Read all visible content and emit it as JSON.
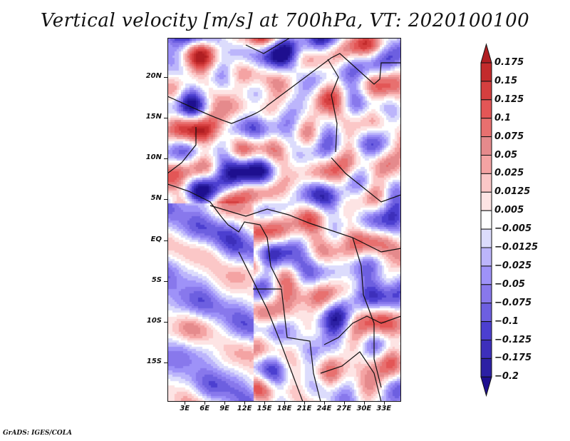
{
  "chart_data": {
    "type": "heatmap",
    "title": "Vertical velocity [m/s] at 700hPa, VT: 2020100100",
    "variable": "Vertical velocity",
    "units": "m/s",
    "level": "700hPa",
    "valid_time": "2020100100",
    "x_axis": {
      "ticks": [
        "3E",
        "6E",
        "9E",
        "12E",
        "15E",
        "18E",
        "21E",
        "24E",
        "27E",
        "30E",
        "33E"
      ],
      "tick_values": [
        3,
        6,
        9,
        12,
        15,
        18,
        21,
        24,
        27,
        30,
        33
      ],
      "range": [
        0.4,
        35.6
      ]
    },
    "y_axis": {
      "ticks": [
        "20N",
        "15N",
        "10N",
        "5N",
        "EQ",
        "5S",
        "10S",
        "15S"
      ],
      "tick_values": [
        20,
        15,
        10,
        5,
        0,
        -5,
        -10,
        -15
      ],
      "range": [
        -19.8,
        24.8
      ]
    },
    "colorbar": {
      "placement": "right",
      "levels": [
        "0.175",
        "0.15",
        "0.125",
        "0.1",
        "0.075",
        "0.05",
        "0.025",
        "0.0125",
        "0.005",
        "-0.005",
        "-0.0125",
        "-0.025",
        "-0.05",
        "-0.075",
        "-0.1",
        "-0.125",
        "-0.175",
        "-0.2"
      ],
      "colors": [
        "#b01e22",
        "#c32b2c",
        "#d53f3f",
        "#e35656",
        "#e8706f",
        "#e58a8c",
        "#f4a3a3",
        "#fbc7c7",
        "#fde4e4",
        "#ffffff",
        "#dcdcfc",
        "#bcb5fb",
        "#9e92f8",
        "#8878ec",
        "#6d5fe0",
        "#4c3fd0",
        "#3d2fbb",
        "#2c20a4",
        "#1e0f8f"
      ],
      "extend": "both"
    },
    "map_features": [
      "country-borders",
      "coastlines",
      "lakes"
    ]
  },
  "footer": {
    "credit": "GrADS: IGES/COLA"
  }
}
